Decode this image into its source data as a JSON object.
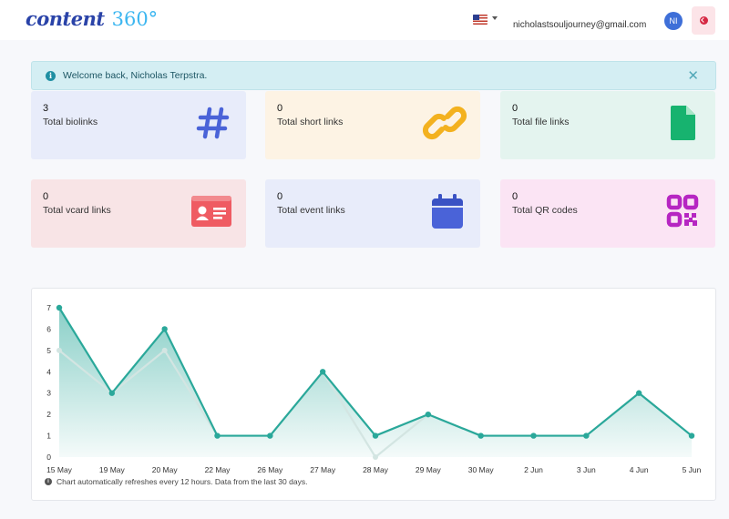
{
  "header": {
    "logo_word": "content",
    "logo_number": "360°",
    "flag_icon": "us-flag-icon",
    "email": "nicholastsouljourney@gmail.com",
    "avatar_initials": "NI",
    "logout_icon": "logout-icon"
  },
  "alert": {
    "message": "Welcome back, Nicholas Terpstra.",
    "close_glyph": "✕"
  },
  "cards": [
    {
      "value": "3",
      "label": "Total biolinks",
      "icon": "hashtag-icon",
      "bg": "#e8ecfa",
      "color": "#4a63d8"
    },
    {
      "value": "0",
      "label": "Total short links",
      "icon": "link-icon",
      "bg": "#fdf3e4",
      "color": "#f3b11f"
    },
    {
      "value": "0",
      "label": "Total file links",
      "icon": "file-icon",
      "bg": "#e4f4ef",
      "color": "#17b36f"
    },
    {
      "value": "0",
      "label": "Total vcard links",
      "icon": "id-card-icon",
      "bg": "#f8e4e6",
      "color": "#ef5b62"
    },
    {
      "value": "0",
      "label": "Total event links",
      "icon": "calendar-icon",
      "bg": "#e8ecfa",
      "color": "#4a63d8"
    },
    {
      "value": "0",
      "label": "Total QR codes",
      "icon": "qr-code-icon",
      "bg": "#fbe4f4",
      "color": "#b626c2"
    }
  ],
  "chart": {
    "note": "Chart automatically refreshes every 12 hours. Data from the last 30 days."
  },
  "chart_data": {
    "type": "area",
    "x": [
      "15 May",
      "19 May",
      "20 May",
      "22 May",
      "26 May",
      "27 May",
      "28 May",
      "29 May",
      "30 May",
      "2 Jun",
      "3 Jun",
      "4 Jun",
      "5 Jun"
    ],
    "ylim": [
      0,
      7
    ],
    "yticks": [
      0,
      1,
      2,
      3,
      4,
      5,
      6,
      7
    ],
    "grid": false,
    "series": [
      {
        "values": [
          7,
          3,
          6,
          1,
          1,
          4,
          1,
          2,
          1,
          1,
          1,
          3,
          1
        ],
        "color": "#2aa89a"
      },
      {
        "values": [
          5,
          3,
          5,
          1,
          1,
          4,
          0,
          2,
          1,
          1,
          1,
          3,
          1
        ],
        "color": "#d3e5e2"
      }
    ]
  }
}
